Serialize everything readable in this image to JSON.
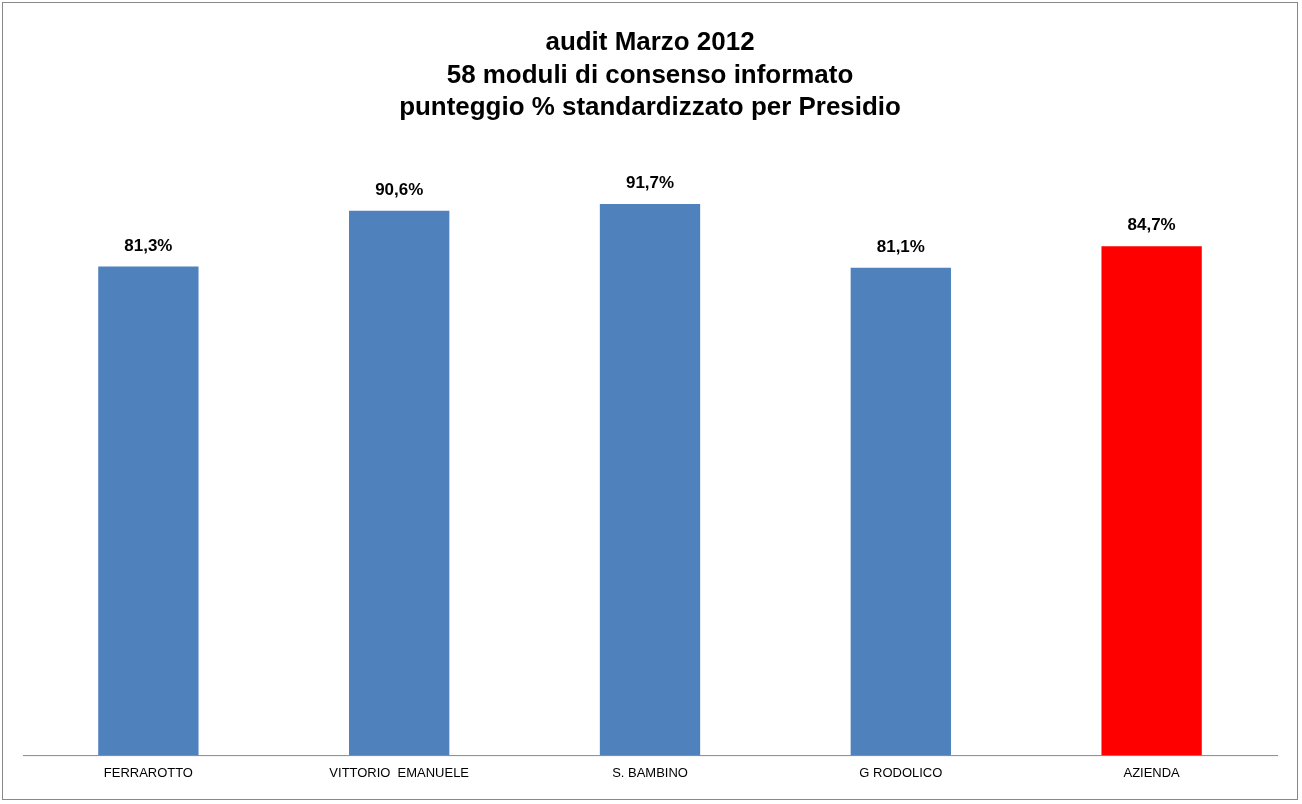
{
  "chart_data": {
    "type": "bar",
    "title": "audit Marzo 2012\n58 moduli di consenso informato\npunteggio % standardizzato per Presidio",
    "categories": [
      "FERRAROTTO",
      "VITTORIO  EMANUELE",
      "S. BAMBINO",
      "G RODOLICO",
      "AZIENDA"
    ],
    "values": [
      81.3,
      90.6,
      91.7,
      81.1,
      84.7
    ],
    "colors": [
      "#4f81bd",
      "#4f81bd",
      "#4f81bd",
      "#4f81bd",
      "#ff0000"
    ],
    "value_labels": [
      "81,3%",
      "90,6%",
      "91,7%",
      "81,1%",
      "84,7%"
    ],
    "grid": false,
    "legend": false
  }
}
